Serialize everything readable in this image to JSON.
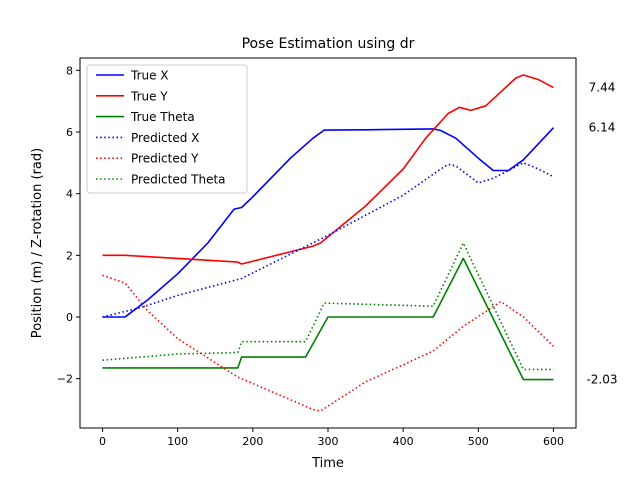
{
  "chart_data": {
    "type": "line",
    "title": "Pose Estimation using dr",
    "xlabel": "Time",
    "ylabel": "Position (m) / Z-rotation (rad)",
    "xlim": [
      -30,
      630
    ],
    "ylim": [
      -3.6,
      8.4
    ],
    "xticks": [
      0,
      100,
      200,
      300,
      400,
      500,
      600
    ],
    "yticks": [
      -2,
      0,
      2,
      4,
      6,
      8
    ],
    "grid": false,
    "legend_position": "top-left",
    "side_labels": [
      {
        "text": "7.44",
        "y": 7.44
      },
      {
        "text": "6.14",
        "y": 6.14
      },
      {
        "text": "-2.03",
        "y": -2.03
      }
    ],
    "series": [
      {
        "name": "True X",
        "color": "#0000ff",
        "style": "solid",
        "points": [
          [
            0,
            0.0
          ],
          [
            30,
            0.0
          ],
          [
            60,
            0.55
          ],
          [
            100,
            1.4
          ],
          [
            140,
            2.4
          ],
          [
            175,
            3.5
          ],
          [
            185,
            3.55
          ],
          [
            200,
            3.9
          ],
          [
            250,
            5.15
          ],
          [
            280,
            5.8
          ],
          [
            295,
            6.06
          ],
          [
            350,
            6.07
          ],
          [
            440,
            6.1
          ],
          [
            450,
            6.05
          ],
          [
            470,
            5.8
          ],
          [
            500,
            5.15
          ],
          [
            520,
            4.75
          ],
          [
            540,
            4.75
          ],
          [
            560,
            5.1
          ],
          [
            600,
            6.14
          ]
        ]
      },
      {
        "name": "True Y",
        "color": "#ff0000",
        "style": "solid",
        "points": [
          [
            0,
            2.0
          ],
          [
            30,
            2.0
          ],
          [
            100,
            1.9
          ],
          [
            180,
            1.78
          ],
          [
            185,
            1.72
          ],
          [
            280,
            2.3
          ],
          [
            290,
            2.4
          ],
          [
            350,
            3.6
          ],
          [
            400,
            4.8
          ],
          [
            430,
            5.8
          ],
          [
            460,
            6.6
          ],
          [
            475,
            6.8
          ],
          [
            490,
            6.7
          ],
          [
            510,
            6.85
          ],
          [
            530,
            7.3
          ],
          [
            550,
            7.75
          ],
          [
            560,
            7.85
          ],
          [
            580,
            7.7
          ],
          [
            600,
            7.44
          ]
        ]
      },
      {
        "name": "True Theta",
        "color": "#008000",
        "style": "solid",
        "points": [
          [
            0,
            -1.65
          ],
          [
            180,
            -1.65
          ],
          [
            185,
            -1.3
          ],
          [
            270,
            -1.3
          ],
          [
            300,
            0.0
          ],
          [
            440,
            0.0
          ],
          [
            480,
            1.9
          ],
          [
            560,
            -2.03
          ],
          [
            600,
            -2.03
          ]
        ]
      },
      {
        "name": "Predicted X",
        "color": "#0000ff",
        "style": "dotted",
        "points": [
          [
            0,
            0.0
          ],
          [
            50,
            0.3
          ],
          [
            100,
            0.7
          ],
          [
            185,
            1.25
          ],
          [
            300,
            2.65
          ],
          [
            400,
            3.95
          ],
          [
            450,
            4.8
          ],
          [
            460,
            4.95
          ],
          [
            470,
            4.9
          ],
          [
            500,
            4.35
          ],
          [
            520,
            4.5
          ],
          [
            560,
            5.0
          ],
          [
            580,
            4.8
          ],
          [
            600,
            4.55
          ]
        ]
      },
      {
        "name": "Predicted Y",
        "color": "#ff0000",
        "style": "dotted",
        "points": [
          [
            0,
            1.35
          ],
          [
            30,
            1.1
          ],
          [
            60,
            0.2
          ],
          [
            100,
            -0.7
          ],
          [
            180,
            -1.95
          ],
          [
            185,
            -2.0
          ],
          [
            280,
            -3.0
          ],
          [
            290,
            -3.05
          ],
          [
            350,
            -2.1
          ],
          [
            400,
            -1.55
          ],
          [
            440,
            -1.1
          ],
          [
            480,
            -0.3
          ],
          [
            530,
            0.5
          ],
          [
            560,
            0.0
          ],
          [
            600,
            -0.95
          ]
        ]
      },
      {
        "name": "Predicted Theta",
        "color": "#008000",
        "style": "dotted",
        "points": [
          [
            0,
            -1.4
          ],
          [
            100,
            -1.2
          ],
          [
            180,
            -1.15
          ],
          [
            185,
            -0.8
          ],
          [
            270,
            -0.8
          ],
          [
            295,
            0.45
          ],
          [
            440,
            0.35
          ],
          [
            480,
            2.4
          ],
          [
            560,
            -1.7
          ],
          [
            600,
            -1.7
          ]
        ]
      }
    ]
  }
}
